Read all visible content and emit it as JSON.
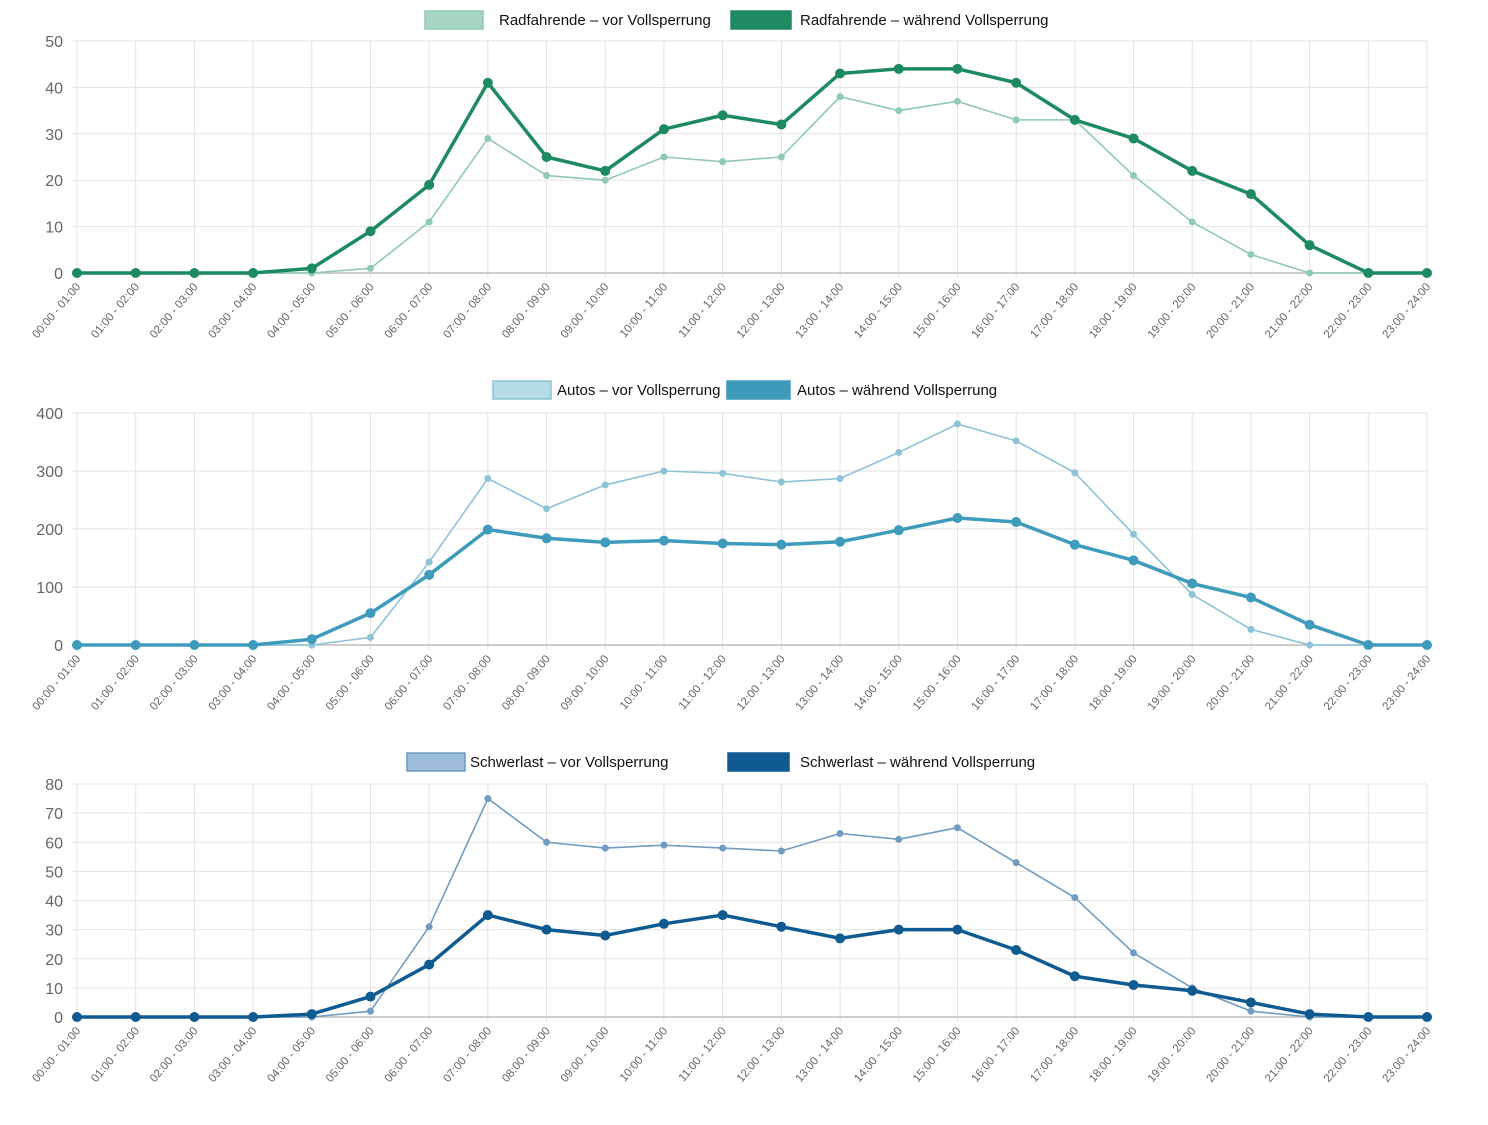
{
  "colors": {
    "grid": "#e2e2e2",
    "axis": "#bdbdbd",
    "tick_text": "#666666"
  },
  "chart_data": [
    {
      "type": "line",
      "categories": [
        "00:00 - 01:00",
        "01:00 - 02:00",
        "02:00 - 03:00",
        "03:00 - 04:00",
        "04:00 - 05:00",
        "05:00 - 06:00",
        "06:00 - 07:00",
        "07:00 - 08:00",
        "08:00 - 09:00",
        "09:00 - 10:00",
        "10:00 - 11:00",
        "11:00 - 12:00",
        "12:00 - 13:00",
        "13:00 - 14:00",
        "14:00 - 15:00",
        "15:00 - 16:00",
        "16:00 - 17:00",
        "17:00 - 18:00",
        "18:00 - 19:00",
        "19:00 - 20:00",
        "20:00 - 21:00",
        "21:00 - 22:00",
        "22:00 - 23:00",
        "23:00 - 24:00"
      ],
      "ylim": [
        0,
        50
      ],
      "yticks": [
        0,
        10,
        20,
        30,
        40,
        50
      ],
      "grid": true,
      "legend": "top-center",
      "series": [
        {
          "name": "Radfahrende – vor Vollsperrung",
          "color": "#8fcab2",
          "fill": "#a8d5c2",
          "values": [
            0,
            0,
            0,
            0,
            0,
            1,
            11,
            29,
            21,
            20,
            25,
            24,
            25,
            38,
            35,
            37,
            33,
            33,
            21,
            11,
            4,
            0,
            0,
            0
          ]
        },
        {
          "name": "Radfahrende – während Vollsperrung",
          "color": "#1e8a5f",
          "fill": "#1e8a5f",
          "values": [
            0,
            0,
            0,
            0,
            1,
            9,
            19,
            41,
            25,
            22,
            31,
            34,
            32,
            43,
            44,
            44,
            41,
            33,
            29,
            22,
            17,
            6,
            0,
            0
          ]
        }
      ]
    },
    {
      "type": "line",
      "categories": [
        "00:00 - 01:00",
        "01:00 - 02:00",
        "02:00 - 03:00",
        "03:00 - 04:00",
        "04:00 - 05:00",
        "05:00 - 06:00",
        "06:00 - 07:00",
        "07:00 - 08:00",
        "08:00 - 09:00",
        "09:00 - 10:00",
        "10:00 - 11:00",
        "11:00 - 12:00",
        "12:00 - 13:00",
        "13:00 - 14:00",
        "14:00 - 15:00",
        "15:00 - 16:00",
        "16:00 - 17:00",
        "17:00 - 18:00",
        "18:00 - 19:00",
        "19:00 - 20:00",
        "20:00 - 21:00",
        "21:00 - 22:00",
        "22:00 - 23:00",
        "23:00 - 24:00"
      ],
      "ylim": [
        0,
        400
      ],
      "yticks": [
        0,
        100,
        200,
        300,
        400
      ],
      "grid": true,
      "legend": "top-center",
      "series": [
        {
          "name": "Autos – vor Vollsperrung",
          "color": "#8cc3d6",
          "fill": "#b5dbe8",
          "values": [
            0,
            0,
            0,
            0,
            0,
            13,
            143,
            287,
            235,
            276,
            300,
            296,
            281,
            287,
            332,
            381,
            352,
            297,
            191,
            87,
            27,
            0,
            0,
            0
          ]
        },
        {
          "name": "Autos – während Vollsperrung",
          "color": "#3f9bbb",
          "fill": "#3f9bbb",
          "values": [
            0,
            0,
            0,
            0,
            10,
            55,
            121,
            199,
            184,
            177,
            180,
            175,
            173,
            178,
            198,
            219,
            212,
            173,
            146,
            106,
            82,
            35,
            0,
            0
          ]
        }
      ]
    },
    {
      "type": "line",
      "categories": [
        "00:00 - 01:00",
        "01:00 - 02:00",
        "02:00 - 03:00",
        "03:00 - 04:00",
        "04:00 - 05:00",
        "05:00 - 06:00",
        "06:00 - 07:00",
        "07:00 - 08:00",
        "08:00 - 09:00",
        "09:00 - 10:00",
        "10:00 - 11:00",
        "11:00 - 12:00",
        "12:00 - 13:00",
        "13:00 - 14:00",
        "14:00 - 15:00",
        "15:00 - 16:00",
        "16:00 - 17:00",
        "17:00 - 18:00",
        "18:00 - 19:00",
        "19:00 - 20:00",
        "20:00 - 21:00",
        "21:00 - 22:00",
        "22:00 - 23:00",
        "23:00 - 24:00"
      ],
      "ylim": [
        0,
        80
      ],
      "yticks": [
        0,
        10,
        20,
        30,
        40,
        50,
        60,
        70,
        80
      ],
      "grid": true,
      "legend": "top-center",
      "series": [
        {
          "name": "Schwerlast – vor Vollsperrung",
          "color": "#6f9cc0",
          "fill": "#9dbdd8",
          "values": [
            0,
            0,
            0,
            0,
            0,
            2,
            31,
            75,
            60,
            58,
            59,
            58,
            57,
            63,
            61,
            65,
            53,
            41,
            22,
            10,
            2,
            0,
            0,
            0
          ]
        },
        {
          "name": "Schwerlast – während Vollsperrung",
          "color": "#0f5a91",
          "fill": "#0f5a91",
          "values": [
            0,
            0,
            0,
            0,
            1,
            7,
            18,
            35,
            30,
            28,
            32,
            35,
            31,
            27,
            30,
            30,
            23,
            14,
            11,
            9,
            5,
            1,
            0,
            0
          ]
        }
      ]
    }
  ]
}
